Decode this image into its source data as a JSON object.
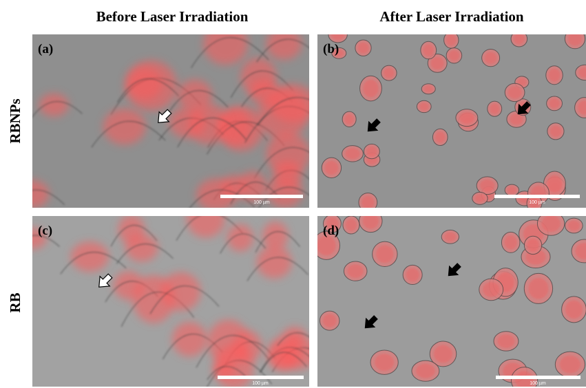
{
  "column_headers": [
    "Before Laser Irradiation",
    "After Laser Irradiation"
  ],
  "row_labels": [
    "RBNPs",
    "RB"
  ],
  "panels": [
    {
      "label": "(a)",
      "scale_bar": "100 µm"
    },
    {
      "label": "(b)",
      "scale_bar": "100 µm"
    },
    {
      "label": "(c)",
      "scale_bar": "100 µm"
    },
    {
      "label": "(d)",
      "scale_bar": "100 µm"
    }
  ]
}
